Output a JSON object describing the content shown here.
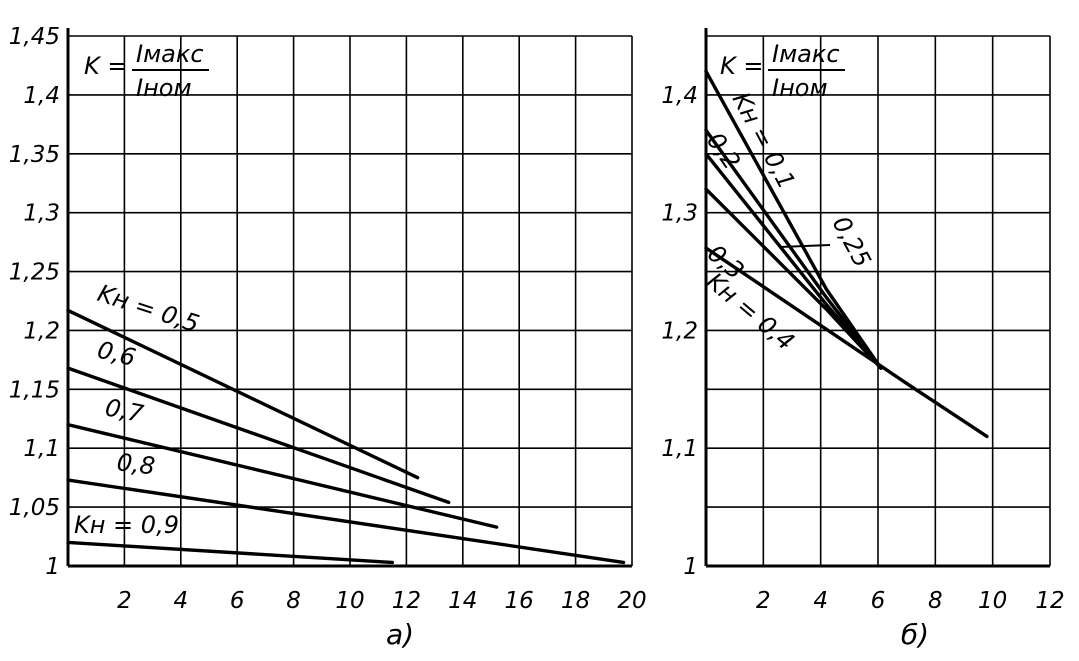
{
  "chart_data": [
    {
      "type": "line",
      "title": "а)",
      "formula": {
        "lhs": "K =",
        "num": "Iмакс",
        "den": "Iном"
      },
      "ylim": [
        1,
        1.45
      ],
      "yticks": [
        "1",
        "1,05",
        "1,1",
        "1,15",
        "1,2",
        "1,25",
        "1,3",
        "1,35",
        "1,4",
        "1,45"
      ],
      "xlim": [
        0,
        20
      ],
      "xticks": [
        "2",
        "4",
        "6",
        "8",
        "10",
        "12",
        "14",
        "16",
        "18",
        "20"
      ],
      "grid": true,
      "series": [
        {
          "name": "Kн = 0,5",
          "label": "Kн = 0,5",
          "x": [
            0,
            12.4
          ],
          "y": [
            1.217,
            1.075
          ]
        },
        {
          "name": "0,6",
          "label": "0,6",
          "x": [
            0,
            13.5
          ],
          "y": [
            1.168,
            1.054
          ]
        },
        {
          "name": "0,7",
          "label": "0,7",
          "x": [
            0,
            15.2
          ],
          "y": [
            1.12,
            1.033
          ]
        },
        {
          "name": "0,8",
          "label": "0,8",
          "x": [
            0,
            19.7
          ],
          "y": [
            1.073,
            1.003
          ]
        },
        {
          "name": "Kн = 0,9",
          "label": "Kн = 0,9",
          "x": [
            0,
            11.5
          ],
          "y": [
            1.02,
            1.003
          ]
        }
      ]
    },
    {
      "type": "line",
      "title": "б)",
      "formula": {
        "lhs": "K =",
        "num": "Iмакс",
        "den": "Iном"
      },
      "ylim": [
        1,
        1.45
      ],
      "yticks": [
        "1",
        "1,1",
        "1,2",
        "1,3",
        "1,4"
      ],
      "xlim": [
        0,
        12
      ],
      "xticks": [
        "2",
        "4",
        "6",
        "8",
        "10",
        "12"
      ],
      "grid": true,
      "series": [
        {
          "name": "Kн = 0,1",
          "label": "Kн = 0,1",
          "x": [
            0,
            4.2,
            6.1
          ],
          "y": [
            1.42,
            1.235,
            1.168
          ]
        },
        {
          "name": "0,2",
          "label": "0,2",
          "x": [
            0,
            4.2,
            6.1
          ],
          "y": [
            1.37,
            1.228,
            1.168
          ]
        },
        {
          "name": "0,25",
          "label": "0,25",
          "x": [
            0,
            4.2,
            6.1
          ],
          "y": [
            1.35,
            1.222,
            1.168
          ]
        },
        {
          "name": "0,3",
          "label": "0,3",
          "x": [
            0,
            4.2,
            6.1
          ],
          "y": [
            1.32,
            1.218,
            1.168
          ]
        },
        {
          "name": "Kн = 0,4",
          "label": "Kн = 0,4",
          "x": [
            0,
            7,
            9.8
          ],
          "y": [
            1.27,
            1.155,
            1.11
          ]
        }
      ]
    }
  ]
}
